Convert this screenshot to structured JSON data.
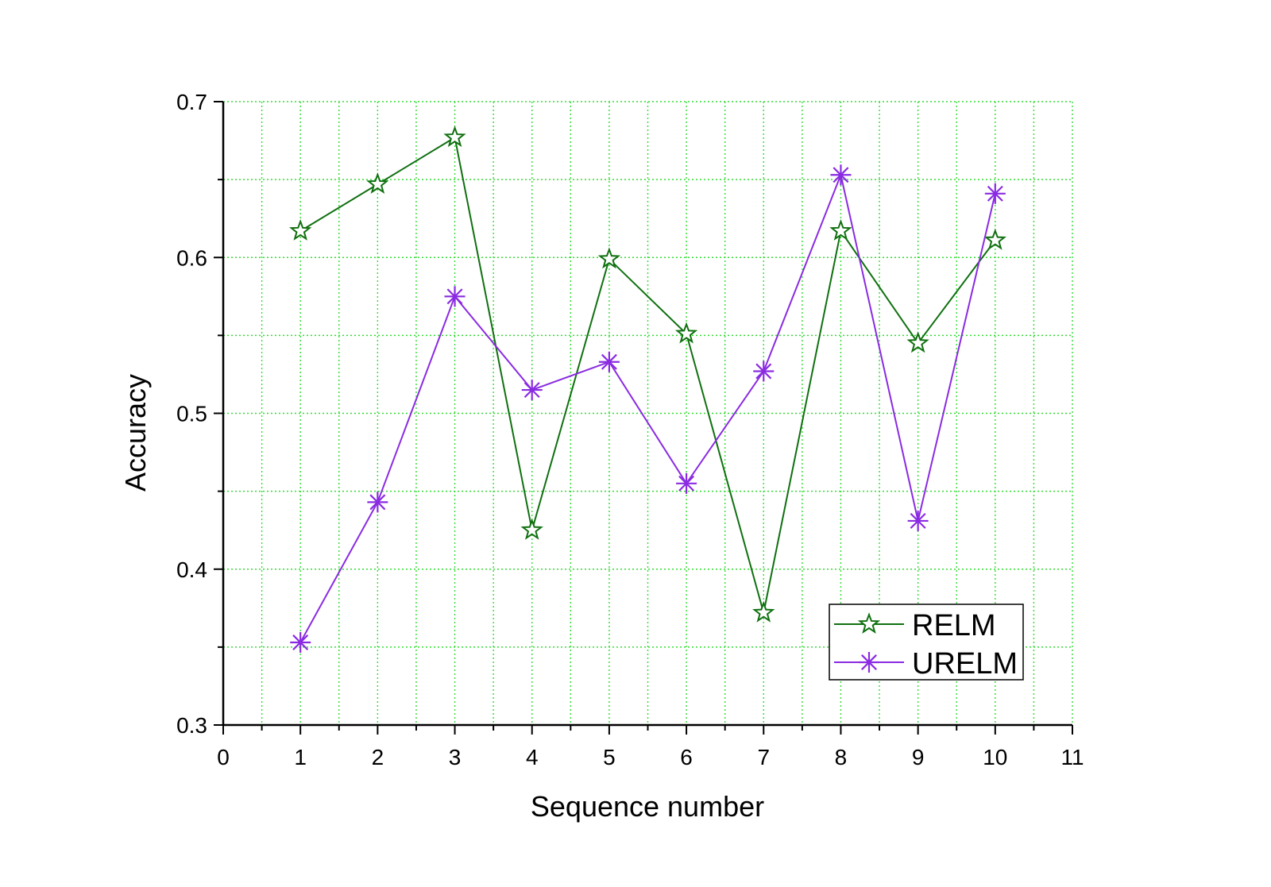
{
  "chart_data": {
    "type": "line",
    "xlabel": "Sequence number",
    "ylabel": "Accuracy",
    "xlim": [
      0,
      11
    ],
    "ylim": [
      0.3,
      0.7
    ],
    "x_ticks": [
      "0",
      "1",
      "2",
      "3",
      "4",
      "5",
      "6",
      "7",
      "8",
      "9",
      "10",
      "11"
    ],
    "y_ticks": [
      "0.3",
      "0.4",
      "0.5",
      "0.6",
      "0.7"
    ],
    "grid": true,
    "legend_position": "bottom-right",
    "x": [
      1,
      2,
      3,
      4,
      5,
      6,
      7,
      8,
      9,
      10
    ],
    "series": [
      {
        "name": "RELM",
        "color": "#107010",
        "marker": "star",
        "values": [
          0.617,
          0.647,
          0.677,
          0.425,
          0.599,
          0.551,
          0.372,
          0.617,
          0.545,
          0.611
        ]
      },
      {
        "name": "URELM",
        "color": "#8a2be2",
        "marker": "asterisk",
        "values": [
          0.353,
          0.443,
          0.575,
          0.515,
          0.533,
          0.455,
          0.527,
          0.653,
          0.431,
          0.641
        ]
      }
    ]
  }
}
